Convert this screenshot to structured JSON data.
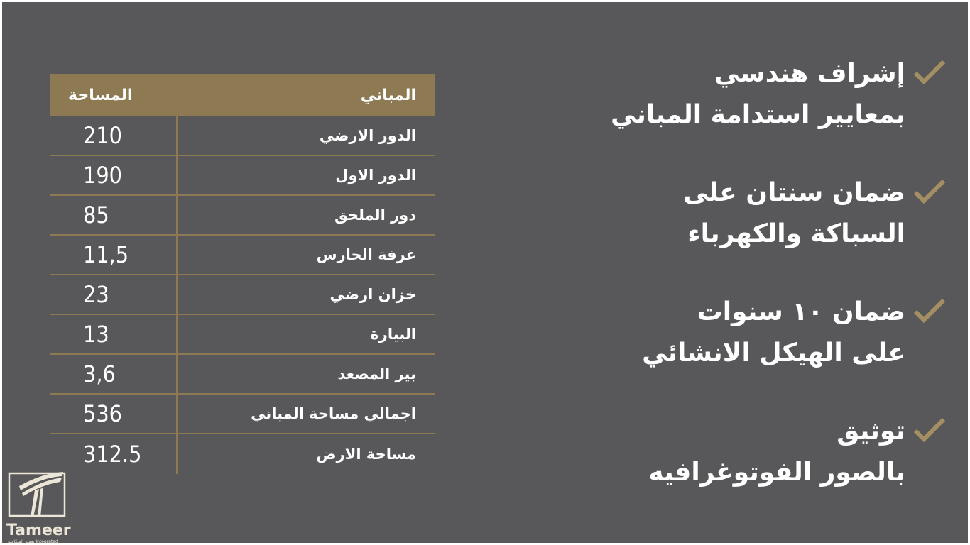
{
  "colors": {
    "background": "#58585a",
    "accent": "#8e7a52",
    "check": "#a48f62",
    "text": "#ffffff"
  },
  "table": {
    "headers": {
      "building": "المباني",
      "area": "المساحة"
    },
    "rows": [
      {
        "name": "الدور الارضي",
        "area": "210"
      },
      {
        "name": "الدور الاول",
        "area": "190"
      },
      {
        "name": "دور الملحق",
        "area": "85"
      },
      {
        "name": "غرفة الحارس",
        "area": "11,5"
      },
      {
        "name": "خزان ارضي",
        "area": "23"
      },
      {
        "name": "البيارة",
        "area": "13"
      },
      {
        "name": "بير المصعد",
        "area": "3,6"
      },
      {
        "name": "اجمالي مساحة المباني",
        "area": "536"
      },
      {
        "name": "مساحة الارض",
        "area": "312.5"
      }
    ]
  },
  "features": [
    {
      "icon": "check-icon",
      "line1": "إشراف هندسي",
      "line2": "بمعايير استدامة المباني"
    },
    {
      "icon": "check-icon",
      "line1": "ضمان سنتان على",
      "line2": "السباكة والكهرباء"
    },
    {
      "icon": "check-icon",
      "line1": "ضمان ١٠ سنوات",
      "line2": "على الهيكل الانشائي"
    },
    {
      "icon": "check-icon",
      "line1": "توثيق",
      "line2": "بالصور الفوتوغرافيه"
    }
  ],
  "logo": {
    "name": "Tameer",
    "subtitle": "تعمير المتكاملة Integrated"
  }
}
